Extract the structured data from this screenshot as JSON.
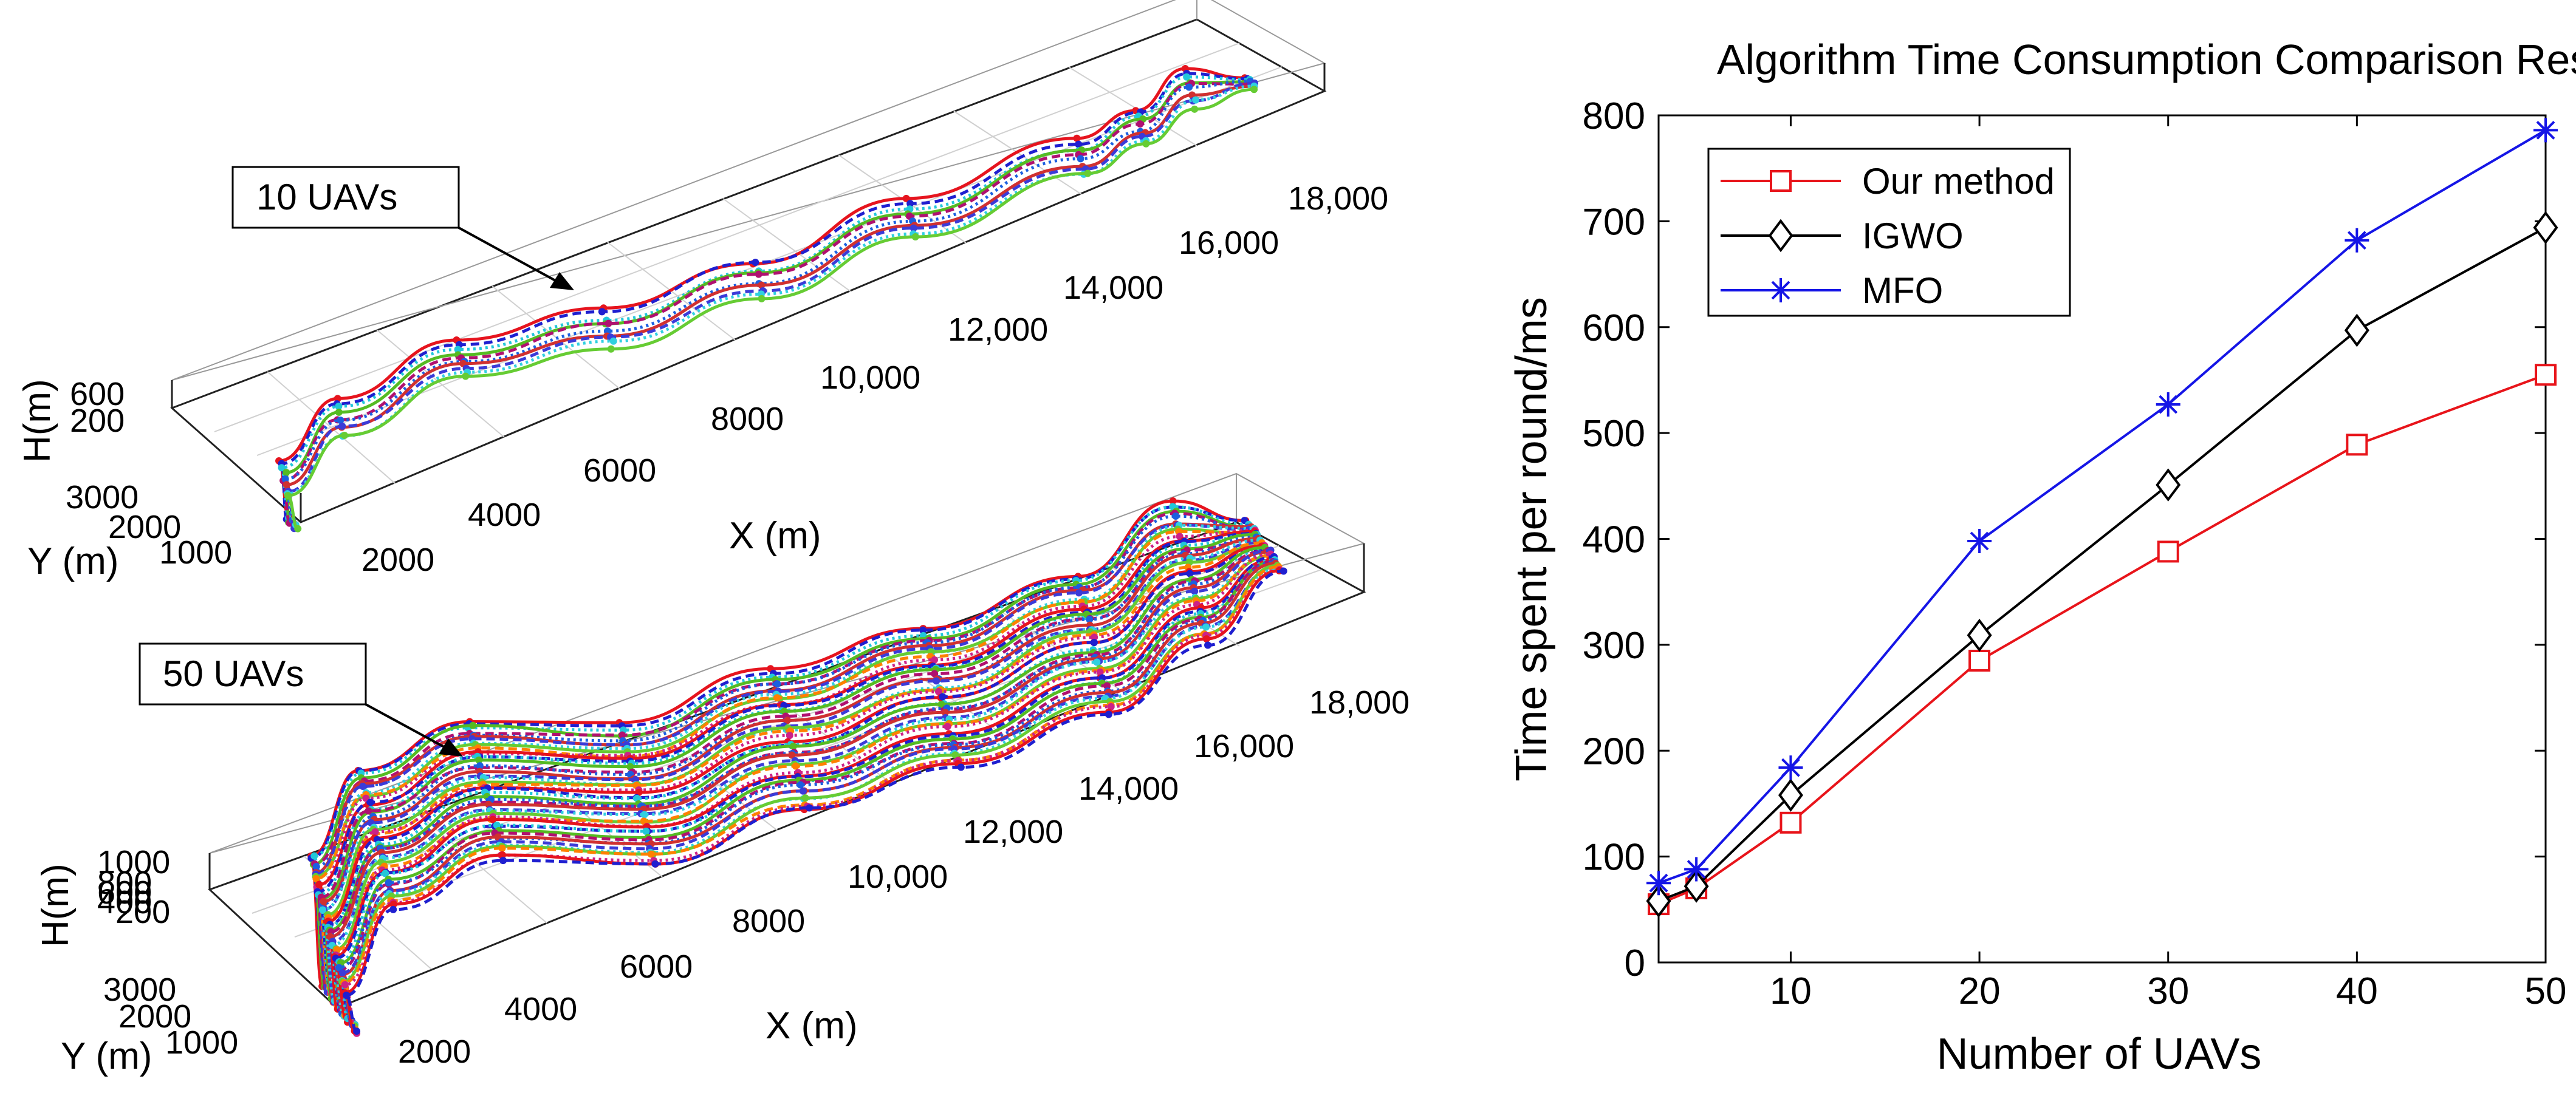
{
  "left_panel": {
    "top": {
      "callout": "10 UAVs",
      "x_label": "X (m)",
      "y_label": "Y (m)",
      "z_label": "H(m)",
      "x_ticks": [
        "2000",
        "4000",
        "6000",
        "8000",
        "10,000",
        "12,000",
        "14,000",
        "16,000",
        "18,000"
      ],
      "y_ticks": [
        "1000",
        "2000",
        "3000"
      ],
      "z_ticks": [
        "200",
        "600"
      ],
      "colors": [
        "#e6141e",
        "#1f1fd0",
        "#22c7d9",
        "#55bb22",
        "#b01070",
        "#1b5fe0",
        "#d03030",
        "#3b3bd8",
        "#30d0e0",
        "#66cc33"
      ]
    },
    "bottom": {
      "callout": "50 UAVs",
      "x_label": "X (m)",
      "y_label": "Y (m)",
      "z_label": "H(m)",
      "x_ticks": [
        "2000",
        "4000",
        "6000",
        "8000",
        "10,000",
        "12,000",
        "14,000",
        "16,000",
        "18,000"
      ],
      "y_ticks": [
        "1000",
        "2000",
        "3000"
      ],
      "z_ticks": [
        "200",
        "400",
        "600",
        "800",
        "1000"
      ],
      "colors": [
        "#e6141e",
        "#1f1fd0",
        "#22c7d9",
        "#55bb22",
        "#b01070",
        "#1b5fe0",
        "#d03030",
        "#3b3bd8",
        "#30d0e0",
        "#66cc33",
        "#ff8000",
        "#cc2288"
      ]
    }
  },
  "chart_data": {
    "type": "line",
    "title": "Algorithm Time Consumption Comparison Results",
    "xlabel": "Number of UAVs",
    "ylabel": "Time spent per round/ms",
    "xlim": [
      3,
      50
    ],
    "ylim": [
      0,
      800
    ],
    "x_ticks": [
      10,
      20,
      30,
      40,
      50
    ],
    "y_ticks": [
      0,
      100,
      200,
      300,
      400,
      500,
      600,
      700,
      800
    ],
    "legend_position": "top-left",
    "series": [
      {
        "name": "Our method",
        "color": "#e8141a",
        "marker": "square",
        "x": [
          3,
          5,
          10,
          20,
          30,
          40,
          50
        ],
        "values": [
          55,
          70,
          132,
          285,
          388,
          489,
          555
        ]
      },
      {
        "name": "IGWO",
        "color": "#000000",
        "marker": "diamond",
        "x": [
          3,
          5,
          10,
          20,
          30,
          40,
          50
        ],
        "values": [
          58,
          72,
          158,
          309,
          451,
          597,
          694
        ]
      },
      {
        "name": "MFO",
        "color": "#1515e6",
        "marker": "asterisk",
        "x": [
          3,
          5,
          10,
          20,
          30,
          40,
          50
        ],
        "values": [
          75,
          88,
          184,
          398,
          527,
          682,
          786
        ]
      }
    ]
  }
}
